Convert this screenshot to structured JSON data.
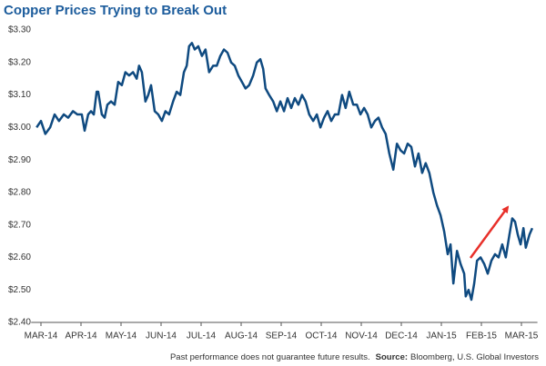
{
  "chart_data": {
    "type": "line",
    "title": "Copper Prices Trying to Break Out",
    "footnote": "Past performance does not guarantee future results.",
    "source_label": "Source:",
    "source": "Bloomberg, U.S. Global Investors",
    "xlim": [
      -0.2,
      12.4
    ],
    "xticks": [
      {
        "value": 0,
        "label": "MAR-14"
      },
      {
        "value": 1,
        "label": "APR-14"
      },
      {
        "value": 2,
        "label": "MAY-14"
      },
      {
        "value": 3,
        "label": "JUN-14"
      },
      {
        "value": 4,
        "label": "JUL-14"
      },
      {
        "value": 5,
        "label": "AUG-14"
      },
      {
        "value": 6,
        "label": "SEP-14"
      },
      {
        "value": 7,
        "label": "OCT-14"
      },
      {
        "value": 8,
        "label": "NOV-14"
      },
      {
        "value": 9,
        "label": "DEC-14"
      },
      {
        "value": 10,
        "label": "JAN-15"
      },
      {
        "value": 11,
        "label": "FEB-15"
      },
      {
        "value": 12,
        "label": "MAR-15"
      }
    ],
    "ylim": [
      2.4,
      3.3
    ],
    "yticks": [
      {
        "value": 2.4,
        "label": "$2.40"
      },
      {
        "value": 2.5,
        "label": "$2.50"
      },
      {
        "value": 2.6,
        "label": "$2.60"
      },
      {
        "value": 2.7,
        "label": "$2.70"
      },
      {
        "value": 2.8,
        "label": "$2.80"
      },
      {
        "value": 2.9,
        "label": "$2.90"
      },
      {
        "value": 3.0,
        "label": "$3.00"
      },
      {
        "value": 3.1,
        "label": "$3.10"
      },
      {
        "value": 3.2,
        "label": "$3.20"
      },
      {
        "value": 3.3,
        "label": "$3.30"
      }
    ],
    "grid": false,
    "color": "#0f4a80",
    "x": [
      -0.11,
      0,
      0.11,
      0.23,
      0.34,
      0.45,
      0.57,
      0.68,
      0.8,
      0.91,
      1.02,
      1.09,
      1.18,
      1.25,
      1.32,
      1.39,
      1.43,
      1.52,
      1.59,
      1.66,
      1.75,
      1.84,
      1.93,
      2.02,
      2.11,
      2.2,
      2.3,
      2.39,
      2.45,
      2.52,
      2.61,
      2.68,
      2.75,
      2.84,
      2.93,
      3.02,
      3.11,
      3.2,
      3.3,
      3.39,
      3.48,
      3.57,
      3.64,
      3.7,
      3.77,
      3.84,
      3.93,
      4.02,
      4.11,
      4.2,
      4.3,
      4.39,
      4.48,
      4.57,
      4.66,
      4.75,
      4.84,
      4.93,
      5.02,
      5.11,
      5.2,
      5.3,
      5.39,
      5.48,
      5.55,
      5.61,
      5.7,
      5.8,
      5.89,
      5.98,
      6.07,
      6.16,
      6.25,
      6.34,
      6.43,
      6.52,
      6.61,
      6.7,
      6.8,
      6.89,
      6.98,
      7.07,
      7.16,
      7.25,
      7.34,
      7.43,
      7.52,
      7.61,
      7.7,
      7.8,
      7.89,
      7.98,
      8.07,
      8.16,
      8.25,
      8.34,
      8.43,
      8.52,
      8.61,
      8.7,
      8.8,
      8.89,
      8.98,
      9.07,
      9.16,
      9.25,
      9.34,
      9.43,
      9.52,
      9.61,
      9.7,
      9.8,
      9.89,
      9.98,
      10.07,
      10.16,
      10.23,
      10.3,
      10.39,
      10.48,
      10.57,
      10.61,
      10.68,
      10.75,
      10.82,
      10.89,
      10.98,
      11.07,
      11.16,
      11.25,
      11.34,
      11.43,
      11.52,
      11.61,
      11.7,
      11.77,
      11.84,
      11.91,
      11.98,
      12.05,
      12.11,
      12.2,
      12.27
    ],
    "values": [
      3.0,
      3.02,
      2.98,
      3.0,
      3.04,
      3.02,
      3.04,
      3.03,
      3.05,
      3.04,
      3.04,
      2.99,
      3.04,
      3.05,
      3.04,
      3.11,
      3.11,
      3.04,
      3.03,
      3.07,
      3.08,
      3.07,
      3.14,
      3.13,
      3.17,
      3.16,
      3.17,
      3.15,
      3.19,
      3.17,
      3.08,
      3.1,
      3.13,
      3.05,
      3.04,
      3.02,
      3.05,
      3.04,
      3.08,
      3.11,
      3.1,
      3.17,
      3.19,
      3.25,
      3.26,
      3.24,
      3.25,
      3.22,
      3.24,
      3.17,
      3.19,
      3.19,
      3.22,
      3.24,
      3.23,
      3.2,
      3.19,
      3.16,
      3.14,
      3.12,
      3.13,
      3.16,
      3.2,
      3.21,
      3.18,
      3.12,
      3.1,
      3.08,
      3.05,
      3.08,
      3.05,
      3.09,
      3.06,
      3.09,
      3.07,
      3.1,
      3.08,
      3.04,
      3.02,
      3.04,
      3.0,
      3.03,
      3.05,
      3.02,
      3.04,
      3.04,
      3.1,
      3.06,
      3.11,
      3.07,
      3.07,
      3.04,
      3.06,
      3.04,
      3.0,
      3.02,
      3.03,
      3.0,
      2.98,
      2.92,
      2.87,
      2.95,
      2.93,
      2.92,
      2.95,
      2.94,
      2.88,
      2.92,
      2.86,
      2.89,
      2.86,
      2.8,
      2.76,
      2.73,
      2.68,
      2.61,
      2.64,
      2.52,
      2.62,
      2.58,
      2.55,
      2.48,
      2.5,
      2.47,
      2.52,
      2.59,
      2.6,
      2.58,
      2.55,
      2.59,
      2.61,
      2.6,
      2.64,
      2.6,
      2.67,
      2.72,
      2.71,
      2.67,
      2.64,
      2.69,
      2.63,
      2.67,
      2.69
    ]
  }
}
